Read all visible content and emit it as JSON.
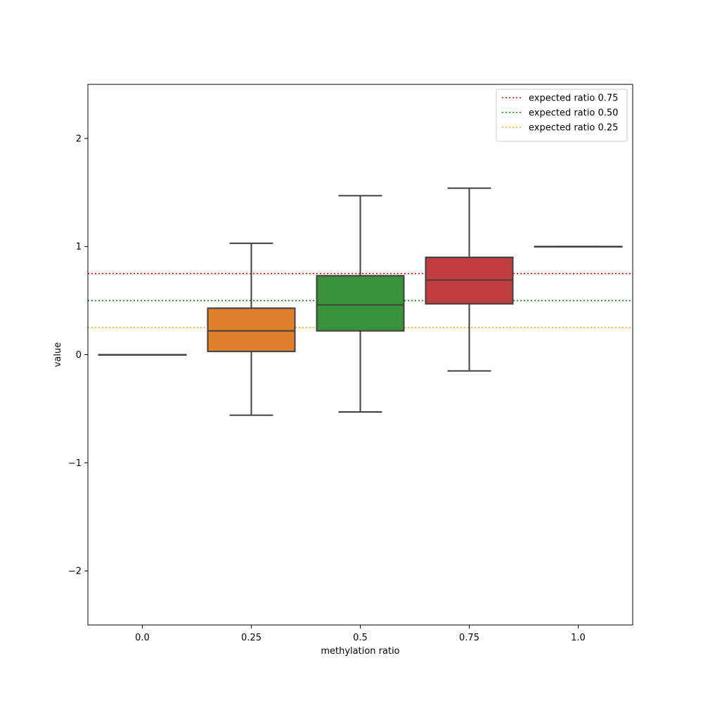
{
  "chart_data": {
    "type": "box",
    "xlabel": "methylation ratio",
    "ylabel": "value",
    "ylim": [
      -2.5,
      2.5
    ],
    "yticks": [
      {
        "value": 2,
        "label": "2"
      },
      {
        "value": 1,
        "label": "1"
      },
      {
        "value": 0,
        "label": "0"
      },
      {
        "value": -1,
        "label": "−1"
      },
      {
        "value": -2,
        "label": "−2"
      }
    ],
    "categories": [
      "0.0",
      "0.25",
      "0.5",
      "0.75",
      "1.0"
    ],
    "boxes": [
      {
        "category": "0.0",
        "whisker_low": 0.0,
        "q1": 0.0,
        "median": 0.0,
        "q3": 0.0,
        "whisker_high": 0.0,
        "color": "#1f77b4"
      },
      {
        "category": "0.25",
        "whisker_low": -0.56,
        "q1": 0.03,
        "median": 0.22,
        "q3": 0.43,
        "whisker_high": 1.03,
        "color": "#e1812c"
      },
      {
        "category": "0.5",
        "whisker_low": -0.53,
        "q1": 0.22,
        "median": 0.46,
        "q3": 0.73,
        "whisker_high": 1.47,
        "color": "#3a923a"
      },
      {
        "category": "0.75",
        "whisker_low": -0.15,
        "q1": 0.47,
        "median": 0.69,
        "q3": 0.9,
        "whisker_high": 1.54,
        "color": "#c03d3e"
      },
      {
        "category": "1.0",
        "whisker_low": 1.0,
        "q1": 1.0,
        "median": 1.0,
        "q3": 1.0,
        "whisker_high": 1.0,
        "color": "#9372b2"
      }
    ],
    "reference_lines": [
      {
        "name": "expected ratio 0.75",
        "value": 0.75,
        "color": "#ff0000"
      },
      {
        "name": "expected ratio 0.50",
        "value": 0.5,
        "color": "#008000"
      },
      {
        "name": "expected ratio 0.25",
        "value": 0.25,
        "color": "#ffa500"
      }
    ],
    "legend_position": "top-right",
    "grid": false
  }
}
